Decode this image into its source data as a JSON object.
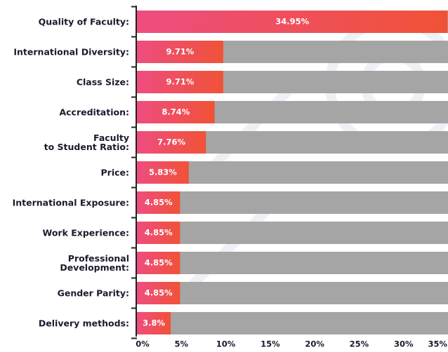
{
  "chart_data": {
    "type": "barh",
    "categories": [
      "Quality of Faculty:",
      "International Diversity:",
      "Class Size:",
      "Accreditation:",
      "Faculty\nto Student Ratio:",
      "Price:",
      "International Exposure:",
      "Work Experience:",
      "Professional\nDevelopment:",
      "Gender Parity:",
      "Delivery methods:"
    ],
    "values": [
      34.95,
      9.71,
      9.71,
      8.74,
      7.76,
      5.83,
      4.85,
      4.85,
      4.85,
      4.85,
      3.8
    ],
    "value_labels": [
      "34.95%",
      "9.71%",
      "9.71%",
      "8.74%",
      "7.76%",
      "5.83%",
      "4.85%",
      "4.85%",
      "4.85%",
      "4.85%",
      "3.8%"
    ],
    "color": [
      "#ee4d80",
      "#f05236"
    ],
    "xlim": [
      0,
      35
    ],
    "xticks": [
      {
        "value": 0,
        "label": "0%"
      },
      {
        "value": 5,
        "label": "5%"
      },
      {
        "value": 10,
        "label": "10%"
      },
      {
        "value": 15,
        "label": "15%"
      },
      {
        "value": 20,
        "label": "20%"
      },
      {
        "value": 25,
        "label": "25%"
      },
      {
        "value": 30,
        "label": "30%"
      },
      {
        "value": 35,
        "label": "35%"
      }
    ]
  }
}
